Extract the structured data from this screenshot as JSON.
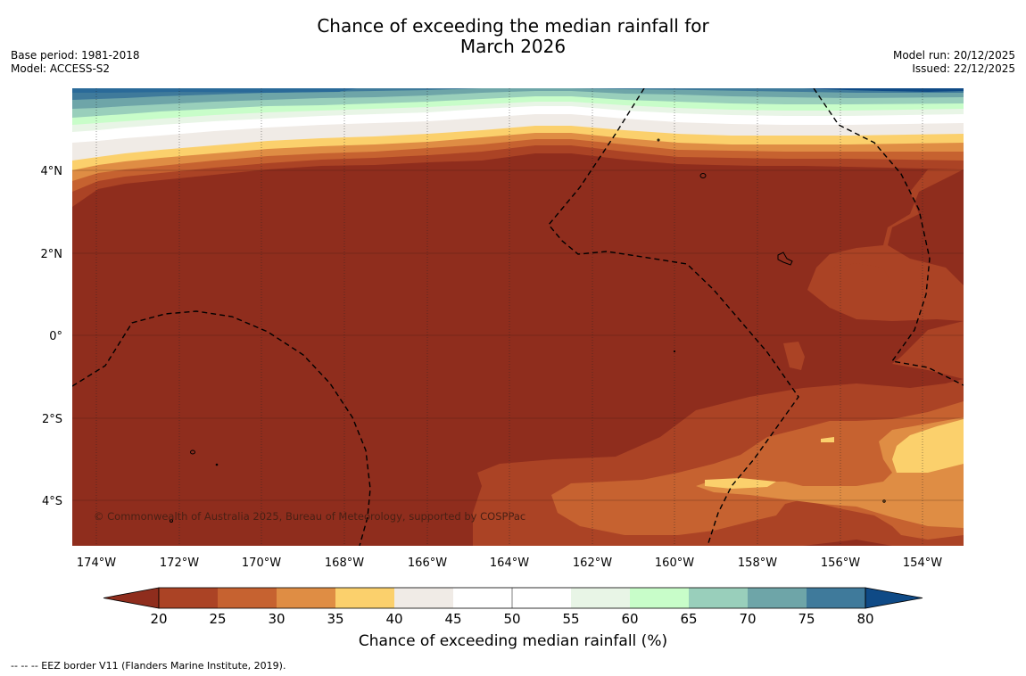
{
  "title": {
    "line1": "Chance of exceeding the median rainfall for",
    "line2": "March 2026"
  },
  "meta": {
    "base_period": "Base period: 1981-2018",
    "model": "Model: ACCESS-S2",
    "model_run": "Model run: 20/12/2025",
    "issued": "Issued: 22/12/2025"
  },
  "map": {
    "lat_labels": [
      "4°N",
      "2°N",
      "0°",
      "2°S",
      "4°S"
    ],
    "lon_labels": [
      "174°W",
      "172°W",
      "170°W",
      "168°W",
      "166°W",
      "164°W",
      "162°W",
      "160°W",
      "158°W",
      "156°W",
      "154°W"
    ],
    "copyright": "© Commonwealth of Australia 2025, Bureau of Meteorology, supported by COSPPac"
  },
  "colorbar": {
    "title": "Chance of exceeding median rainfall (%)",
    "ticks": [
      "20",
      "25",
      "30",
      "35",
      "40",
      "45",
      "50",
      "55",
      "60",
      "65",
      "70",
      "75",
      "80"
    ],
    "colors": {
      "below20": "#8f2d1d",
      "c20_25": "#ab4325",
      "c25_30": "#c66230",
      "c30_35": "#df8d44",
      "c35_40": "#fbd06c",
      "c40_45": "#f0ebe6",
      "c45_55": "#ffffff",
      "c55_60": "#e8f5e6",
      "c60_65": "#c8fdc9",
      "c65_70": "#99cfbb",
      "c70_75": "#6ea5a8",
      "c75_80": "#3f7a9b",
      "above80": "#0f4a86"
    }
  },
  "footnote": "--  --  -- EEZ border V11 (Flanders Marine Institute, 2019)."
}
